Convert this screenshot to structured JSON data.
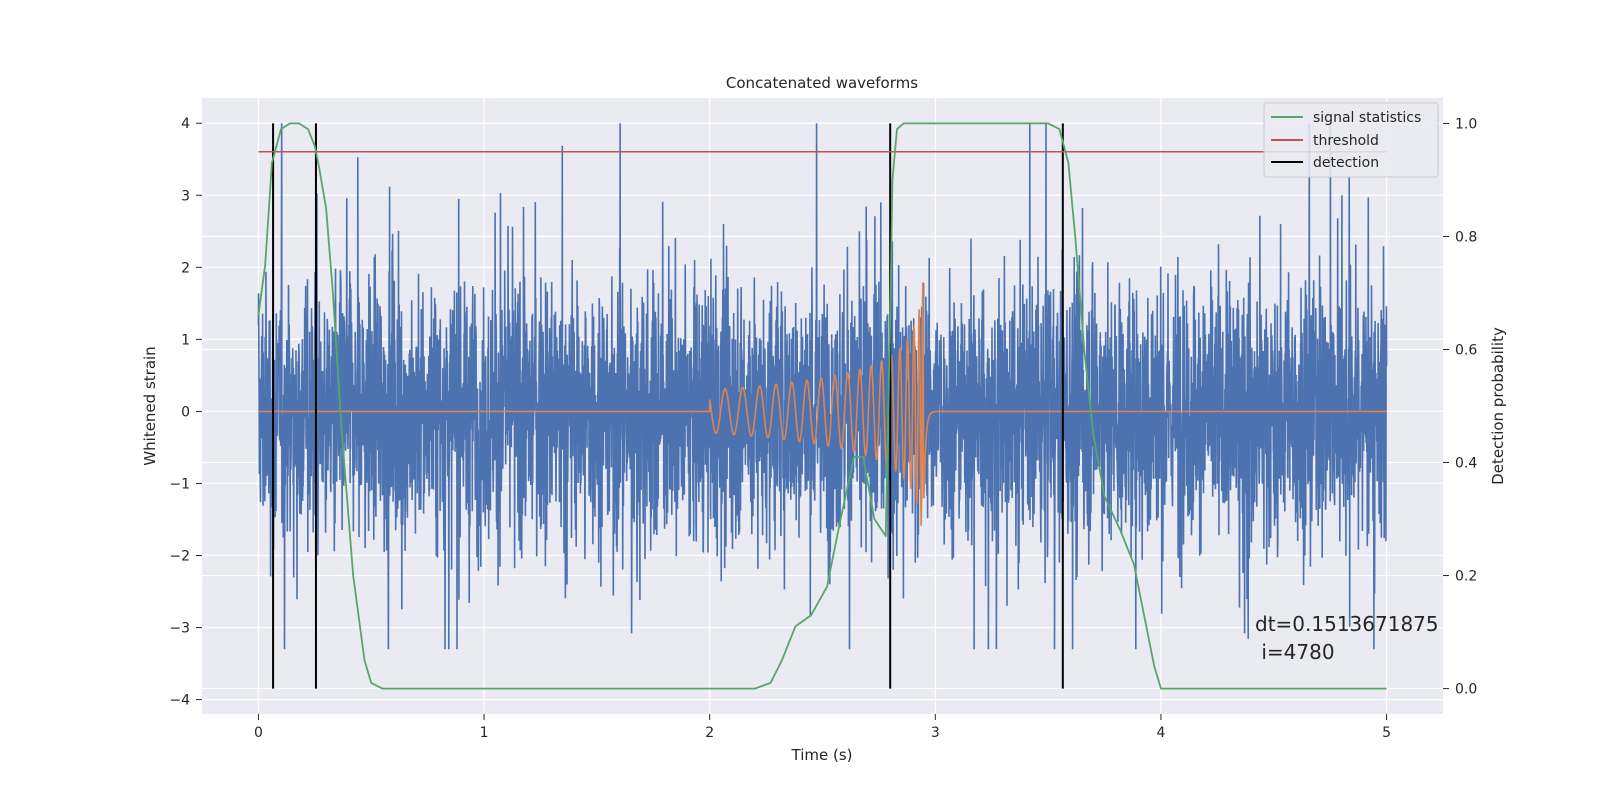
{
  "chart_data": {
    "type": "line",
    "title": "Concatenated waveforms",
    "xlabel": "Time (s)",
    "ylabel": "Whitened strain",
    "y2label": "Detection probability",
    "xlim": [
      -0.25,
      5.25
    ],
    "ylim": [
      -4.2,
      4.35
    ],
    "y2lim": [
      -0.045,
      1.045
    ],
    "x_ticks": [
      0,
      1,
      2,
      3,
      4,
      5
    ],
    "y_ticks": [
      -4,
      -3,
      -2,
      -1,
      0,
      1,
      2,
      3,
      4
    ],
    "y2_ticks": [
      0.0,
      0.2,
      0.4,
      0.6,
      0.8,
      1.0
    ],
    "grid": true,
    "legend_position": "top-right",
    "legend": [
      "signal statistics",
      "threshold",
      "detection"
    ],
    "colors": {
      "noise": "#4c72b0",
      "signal": "#dd8452",
      "statistics": "#55a868",
      "threshold": "#c44e52",
      "detection": "#000000",
      "background": "#eaeaf2"
    },
    "noise_strain": {
      "x_range": [
        0,
        5
      ],
      "typical_amplitude": 1.0,
      "max_peak": 4.0,
      "min_peak": -3.3
    },
    "injected_signal": {
      "x_start": 2.0,
      "x_end": 3.0,
      "start_amplitude": 0.3,
      "peak_amplitude": 1.95,
      "peak_time": 2.95,
      "baseline": 0
    },
    "signal_statistics": {
      "x": [
        0.0,
        0.03,
        0.06,
        0.1,
        0.14,
        0.18,
        0.22,
        0.25,
        0.27,
        0.3,
        0.33,
        0.37,
        0.42,
        0.47,
        0.5,
        0.55,
        1.0,
        1.5,
        2.0,
        2.2,
        2.27,
        2.32,
        2.38,
        2.45,
        2.52,
        2.58,
        2.64,
        2.68,
        2.73,
        2.78,
        2.8,
        2.81,
        2.83,
        2.86,
        2.9,
        3.0,
        3.3,
        3.5,
        3.55,
        3.59,
        3.62,
        3.66,
        3.7,
        3.75,
        3.82,
        3.88,
        3.93,
        3.97,
        4.0,
        4.5,
        5.0
      ],
      "y": [
        0.66,
        0.75,
        0.93,
        0.99,
        1.0,
        1.0,
        0.99,
        0.96,
        0.92,
        0.85,
        0.7,
        0.45,
        0.2,
        0.05,
        0.01,
        0.0,
        0.0,
        0.0,
        0.0,
        0.0,
        0.01,
        0.05,
        0.11,
        0.13,
        0.18,
        0.3,
        0.41,
        0.41,
        0.3,
        0.27,
        0.65,
        0.9,
        0.99,
        1.0,
        1.0,
        1.0,
        1.0,
        1.0,
        0.99,
        0.93,
        0.8,
        0.6,
        0.45,
        0.34,
        0.28,
        0.22,
        0.12,
        0.04,
        0.0,
        0.0,
        0.0
      ]
    },
    "threshold": {
      "x_range": [
        0,
        5
      ],
      "value": 0.95
    },
    "detections": [
      0.065,
      0.255,
      2.8,
      3.565
    ],
    "annotation": {
      "line1": "dt=0.1513671875",
      "line2": " i=4780"
    }
  }
}
